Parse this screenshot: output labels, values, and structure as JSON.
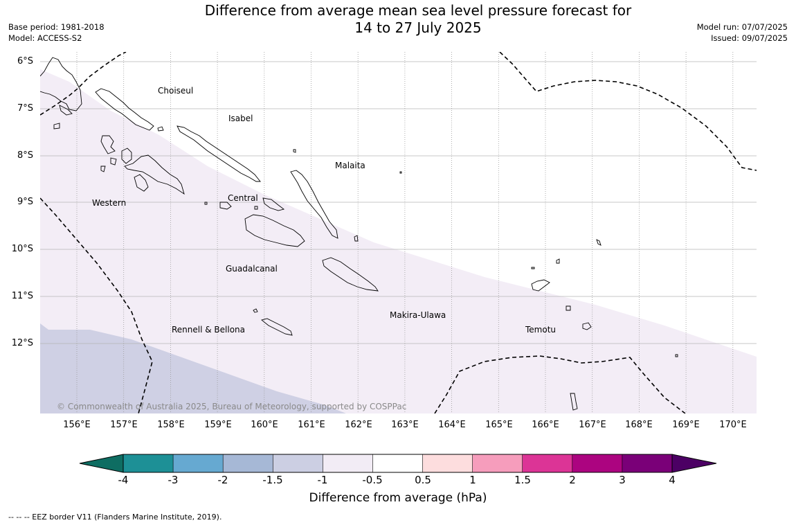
{
  "header": {
    "title_line1": "Difference from average mean sea level pressure forecast for",
    "title_line2": "14 to 27 July 2025",
    "base_period": "Base period: 1981-2018",
    "model": "Model: ACCESS-S2",
    "model_run": "Model run: 07/07/2025",
    "issued": "Issued: 09/07/2025"
  },
  "map": {
    "lat_labels": [
      "6°S",
      "7°S",
      "8°S",
      "9°S",
      "10°S",
      "11°S",
      "12°S"
    ],
    "lon_labels": [
      "156°E",
      "157°E",
      "158°E",
      "159°E",
      "160°E",
      "161°E",
      "162°E",
      "163°E",
      "164°E",
      "165°E",
      "166°E",
      "167°E",
      "168°E",
      "169°E",
      "170°E"
    ],
    "regions": {
      "choiseul": "Choiseul",
      "isabel": "Isabel",
      "malaita": "Malaita",
      "western": "Western",
      "central": "Central",
      "guadalcanal": "Guadalcanal",
      "makira_ulawa": "Makira-Ulawa",
      "rennell_bellona": "Rennell & Bellona",
      "temotu": "Temotu"
    },
    "copyright": "© Commonwealth of Australia 2025, Bureau of Meteorology, supported by COSPPac",
    "shaded_anomaly_classes": [
      "-1.5 to -1",
      "-1 to -0.5"
    ]
  },
  "colorbar": {
    "colors": [
      "#1d9096",
      "#66a9d1",
      "#a6b8d6",
      "#cccfe3",
      "#f2ecf5",
      "#ffffff",
      "#fdddde",
      "#f69dbc",
      "#dc3496",
      "#ac0480",
      "#7a0078"
    ],
    "under_color": "#0e6d62",
    "over_color": "#4c0064",
    "ticks": [
      "-4",
      "-3",
      "-2",
      "-1.5",
      "-1",
      "-0.5",
      "0.5",
      "1",
      "1.5",
      "2",
      "3",
      "4"
    ],
    "label": "Difference from average (hPa)"
  },
  "footnote": "--  --  -- EEZ border V11 (Flanders Marine Institute, 2019)."
}
